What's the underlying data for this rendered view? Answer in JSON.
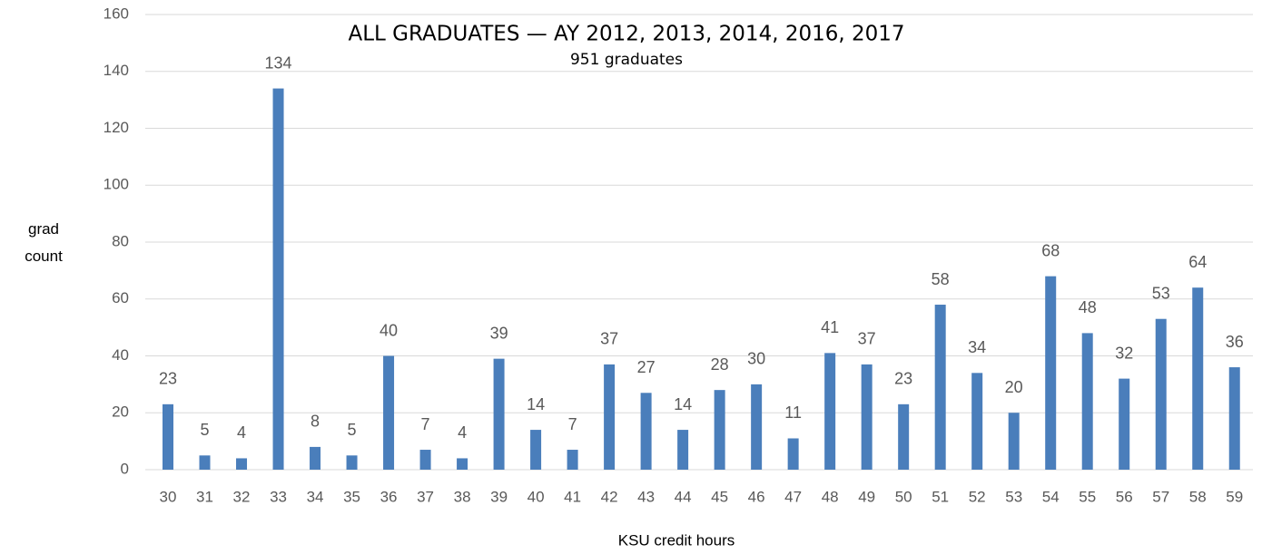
{
  "chart_data": {
    "type": "bar",
    "title": "ALL GRADUATES — AY 2012, 2013, 2014, 2016, 2017",
    "subtitle": "951 graduates",
    "x_label": "KSU credit hours",
    "y_label": "grad count",
    "categories": [
      "30",
      "31",
      "32",
      "33",
      "34",
      "35",
      "36",
      "37",
      "38",
      "39",
      "40",
      "41",
      "42",
      "43",
      "44",
      "45",
      "46",
      "47",
      "48",
      "49",
      "50",
      "51",
      "52",
      "53",
      "54",
      "55",
      "56",
      "57",
      "58",
      "59"
    ],
    "values": [
      23,
      5,
      4,
      134,
      8,
      5,
      40,
      7,
      4,
      39,
      14,
      7,
      37,
      27,
      14,
      28,
      30,
      11,
      41,
      37,
      23,
      58,
      34,
      20,
      68,
      48,
      32,
      53,
      64,
      36
    ],
    "color": "#4a7ebb",
    "ylim": [
      0,
      160
    ],
    "yticks": [
      0,
      20,
      40,
      60,
      80,
      100,
      120,
      140,
      160
    ],
    "grid": true
  }
}
